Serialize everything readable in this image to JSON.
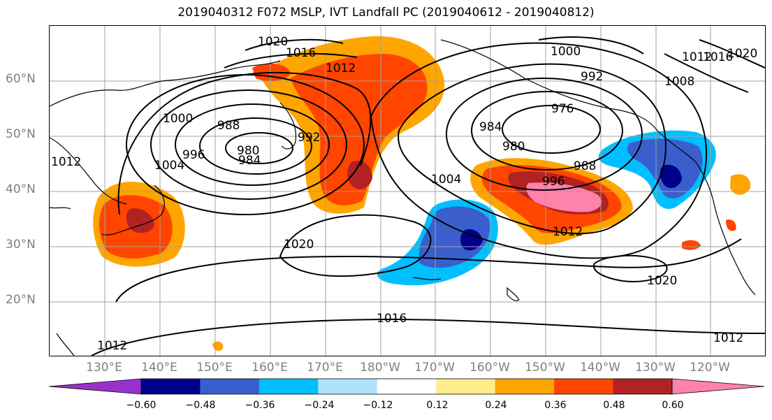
{
  "title": "2019040312 F072 MSLP, IVT Landfall PC (2019040612 - 2019040812)",
  "lat_labels": [
    "60°N",
    "50°N",
    "40°N",
    "30°N",
    "20°N"
  ],
  "lon_labels": [
    "130°E",
    "140°E",
    "150°E",
    "160°E",
    "170°E",
    "180°W",
    "170°W",
    "160°W",
    "150°W",
    "140°W",
    "130°W",
    "120°W"
  ],
  "contour_labels": [
    "1020",
    "1016",
    "1012",
    "1000",
    "992",
    "1012",
    "1016",
    "1020",
    "1008",
    "1000",
    "988",
    "980",
    "984",
    "992",
    "976",
    "984",
    "980",
    "988",
    "996",
    "1004",
    "1012",
    "1004",
    "996",
    "1020",
    "1012",
    "1020",
    "1016",
    "1012",
    "1012"
  ],
  "colorbar": {
    "ticks": [
      "−0.60",
      "−0.48",
      "−0.36",
      "−0.24",
      "−0.12",
      "0.12",
      "0.24",
      "0.36",
      "0.48",
      "0.60"
    ],
    "colors": [
      "#9932cc",
      "#00008b",
      "#3a5fcd",
      "#00bfff",
      "#b0e2ff",
      "#ffffff",
      "#ffec8b",
      "#ffa500",
      "#ff4500",
      "#b22222",
      "#ff82ab"
    ]
  }
}
